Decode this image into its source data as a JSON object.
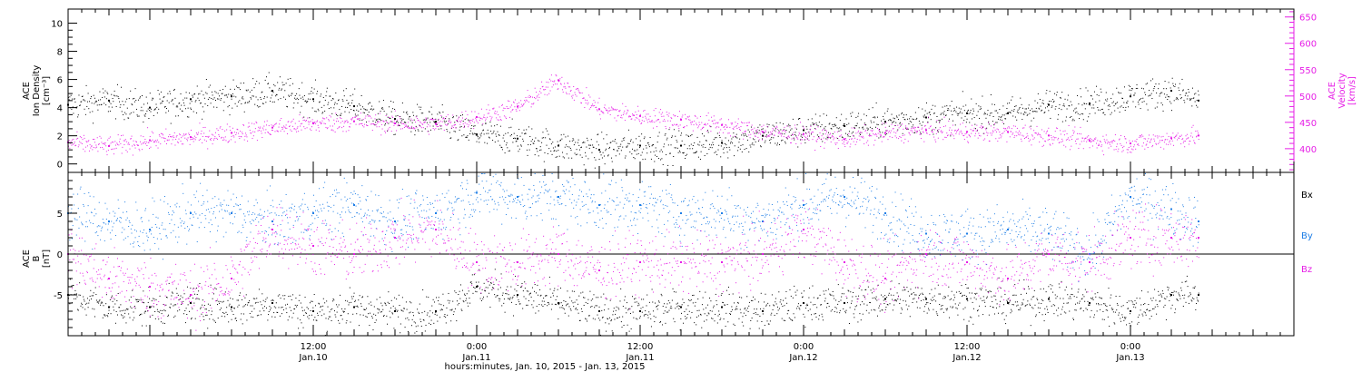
{
  "colors": {
    "black": "#000000",
    "magenta": "#e61ee6",
    "blue": "#1e7ee6",
    "frame": "#000000"
  },
  "time_axis": {
    "range_hours": [
      -6,
      84
    ],
    "ticks": [
      {
        "hour": 12,
        "time": "12:00",
        "day": "Jan.10"
      },
      {
        "hour": 24,
        "time": "0:00",
        "day": "Jan.11"
      },
      {
        "hour": 36,
        "time": "12:00",
        "day": "Jan.11"
      },
      {
        "hour": 48,
        "time": "0:00",
        "day": "Jan.12"
      },
      {
        "hour": 60,
        "time": "12:00",
        "day": "Jan.12"
      },
      {
        "hour": 72,
        "time": "0:00",
        "day": "Jan.13"
      }
    ],
    "minor_step_hours": 1,
    "xlabel": "hours:minutes, Jan. 10, 2015 - Jan. 13, 2015"
  },
  "chart_data": [
    {
      "type": "scatter",
      "panel": "top",
      "left_axis": {
        "label_lines": [
          "ACE",
          "Ion Density",
          "[cm⁻³]"
        ],
        "ylim": [
          -0.6,
          11
        ],
        "ticks": [
          0,
          2,
          4,
          6,
          8,
          10
        ]
      },
      "right_axis": {
        "label_lines": [
          "ACE",
          "Velocity",
          "[km/s]"
        ],
        "ylim": [
          355,
          665
        ],
        "ticks": [
          400,
          450,
          500,
          550,
          600,
          650
        ]
      },
      "series": [
        {
          "color_key": "black",
          "axis": "left",
          "x": [
            -6,
            -3,
            0,
            3,
            6,
            9,
            12,
            15,
            18,
            21,
            24,
            27,
            30,
            33,
            36,
            39,
            42,
            45,
            48,
            51,
            54,
            57,
            60,
            63,
            66,
            69,
            72,
            75,
            77
          ],
          "y": [
            4.2,
            4.5,
            4.0,
            4.6,
            4.8,
            5.2,
            4.6,
            4.1,
            3.2,
            3.0,
            2.1,
            1.8,
            1.3,
            1.0,
            1.3,
            1.3,
            1.5,
            2.0,
            2.4,
            2.7,
            3.0,
            3.3,
            3.6,
            3.6,
            4.2,
            4.3,
            4.8,
            5.2,
            4.5
          ]
        },
        {
          "color_key": "magenta",
          "axis": "right",
          "x": [
            -6,
            -3,
            0,
            3,
            6,
            9,
            12,
            15,
            18,
            21,
            24,
            27,
            30,
            33,
            36,
            39,
            42,
            45,
            48,
            51,
            54,
            57,
            60,
            63,
            66,
            69,
            72,
            75,
            77
          ],
          "y": [
            412,
            405,
            416,
            422,
            430,
            440,
            448,
            452,
            448,
            447,
            460,
            480,
            530,
            475,
            462,
            455,
            445,
            432,
            428,
            418,
            430,
            435,
            432,
            432,
            425,
            415,
            410,
            420,
            425
          ]
        }
      ]
    },
    {
      "type": "scatter",
      "panel": "bottom",
      "left_axis": {
        "label_lines": [
          "ACE",
          "B",
          "[nT]"
        ],
        "ylim": [
          -10,
          10
        ],
        "ticks": [
          -5,
          0,
          5
        ]
      },
      "legend": [
        {
          "label": "Bx",
          "color_key": "black"
        },
        {
          "label": "By",
          "color_key": "blue"
        },
        {
          "label": "Bz",
          "color_key": "magenta"
        }
      ],
      "series": [
        {
          "name": "Bx",
          "color_key": "black",
          "x": [
            -6,
            -3,
            0,
            3,
            6,
            9,
            12,
            15,
            18,
            21,
            24,
            27,
            30,
            33,
            36,
            39,
            42,
            45,
            48,
            51,
            54,
            57,
            60,
            63,
            66,
            69,
            72,
            75,
            77
          ],
          "y": [
            -5,
            -6.5,
            -6.5,
            -6,
            -6.5,
            -6,
            -7,
            -6.5,
            -7,
            -7,
            -4,
            -5,
            -6,
            -7,
            -7,
            -6.5,
            -6.5,
            -7,
            -6,
            -6,
            -5.5,
            -5.5,
            -5.5,
            -6,
            -5.5,
            -6,
            -7,
            -5,
            -5
          ]
        },
        {
          "name": "By",
          "color_key": "blue",
          "x": [
            -6,
            -3,
            0,
            3,
            6,
            9,
            12,
            15,
            18,
            21,
            24,
            27,
            30,
            33,
            36,
            39,
            42,
            45,
            48,
            51,
            54,
            57,
            60,
            63,
            66,
            69,
            72,
            75,
            77
          ],
          "y": [
            5,
            4,
            3,
            5,
            5,
            4,
            5,
            6,
            4,
            5,
            7.5,
            7,
            7,
            6,
            6,
            5,
            5,
            4,
            6,
            7,
            5,
            2.5,
            2.5,
            3,
            2.5,
            0,
            7,
            5.5,
            4
          ]
        },
        {
          "name": "Bz",
          "color_key": "magenta",
          "x": [
            -6,
            -3,
            0,
            3,
            6,
            9,
            12,
            15,
            18,
            21,
            24,
            27,
            30,
            33,
            36,
            39,
            42,
            45,
            48,
            51,
            54,
            57,
            60,
            63,
            66,
            69,
            72,
            75,
            77
          ],
          "y": [
            0,
            -3,
            -4,
            -5,
            -3,
            3,
            1,
            0,
            2,
            3,
            -1,
            -1,
            0,
            -2,
            -1,
            -1,
            -1,
            0,
            3,
            -1,
            -3,
            0,
            -1,
            -3,
            0,
            -1,
            2,
            2,
            2
          ]
        }
      ]
    }
  ]
}
